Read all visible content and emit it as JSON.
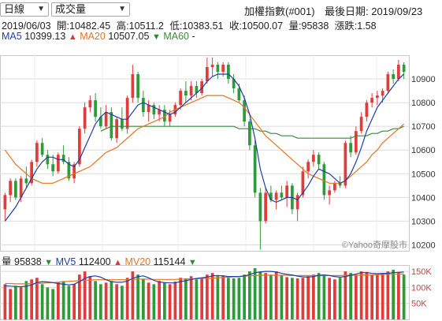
{
  "controls": {
    "period_select": "日線",
    "indicator_select": "成交量"
  },
  "header": {
    "index_name": "加權指數(#001)",
    "last_date": "最後日期: 2019/09/23"
  },
  "ohlc_info": {
    "date": "2019/06/03",
    "open": "開:10482.45",
    "high": "高:10511.2",
    "low": "低:10383.51",
    "close": "收:10500.07",
    "volume": "量:95838",
    "change": "漲跌:1.58"
  },
  "ma_legend": {
    "ma5_label": "MA5",
    "ma5_value": "10399.13",
    "ma20_label": "MA20",
    "ma20_value": "10507.05",
    "ma60_label": "MA60",
    "ma60_value": "-"
  },
  "volume_legend": {
    "vol_label": "量",
    "vol_value": "95838",
    "mv5_label": "MV5",
    "mv5_value": "112400",
    "mv20_label": "MV20",
    "mv20_value": "115144"
  },
  "watermark": "©Yahoo奇摩股市",
  "colors": {
    "up": "#e23b3b",
    "down": "#2f9a3a",
    "ma5": "#1c3fa8",
    "ma20": "#e8731e",
    "ma60": "#3a8a3a",
    "grid": "#dcdcdc"
  },
  "chart_data": [
    {
      "type": "candlestick",
      "price_ticks": [
        "10900",
        "10800",
        "10700",
        "10600",
        "10500",
        "10400",
        "10300",
        "10200"
      ],
      "ylim": [
        10175,
        11000
      ],
      "candles": [
        [
          10350,
          10420,
          10300,
          10410
        ],
        [
          10410,
          10480,
          10380,
          10470
        ],
        [
          10470,
          10480,
          10390,
          10400
        ],
        [
          10400,
          10490,
          10380,
          10480
        ],
        [
          10480,
          10530,
          10440,
          10460
        ],
        [
          10460,
          10560,
          10450,
          10550
        ],
        [
          10550,
          10640,
          10530,
          10630
        ],
        [
          10630,
          10650,
          10570,
          10580
        ],
        [
          10580,
          10600,
          10520,
          10540
        ],
        [
          10540,
          10580,
          10490,
          10510
        ],
        [
          10510,
          10590,
          10500,
          10580
        ],
        [
          10580,
          10620,
          10540,
          10550
        ],
        [
          10550,
          10570,
          10470,
          10480
        ],
        [
          10480,
          10550,
          10460,
          10540
        ],
        [
          10540,
          10700,
          10530,
          10690
        ],
        [
          10690,
          10800,
          10670,
          10780
        ],
        [
          10780,
          10830,
          10760,
          10810
        ],
        [
          10810,
          10840,
          10720,
          10740
        ],
        [
          10740,
          10780,
          10690,
          10700
        ],
        [
          10700,
          10790,
          10690,
          10760
        ],
        [
          10760,
          10780,
          10640,
          10650
        ],
        [
          10650,
          10740,
          10630,
          10730
        ],
        [
          10730,
          10780,
          10680,
          10690
        ],
        [
          10690,
          10830,
          10670,
          10820
        ],
        [
          10820,
          10960,
          10800,
          10920
        ],
        [
          10920,
          10930,
          10800,
          10820
        ],
        [
          10820,
          10850,
          10740,
          10760
        ],
        [
          10760,
          10810,
          10720,
          10790
        ],
        [
          10790,
          10800,
          10730,
          10750
        ],
        [
          10750,
          10790,
          10720,
          10770
        ],
        [
          10770,
          10790,
          10700,
          10720
        ],
        [
          10720,
          10770,
          10700,
          10750
        ],
        [
          10750,
          10800,
          10740,
          10790
        ],
        [
          10790,
          10860,
          10770,
          10850
        ],
        [
          10850,
          10890,
          10800,
          10830
        ],
        [
          10830,
          10890,
          10810,
          10870
        ],
        [
          10870,
          10890,
          10820,
          10840
        ],
        [
          10840,
          10900,
          10830,
          10890
        ],
        [
          10890,
          10990,
          10880,
          10950
        ],
        [
          10950,
          10990,
          10910,
          10960
        ],
        [
          10960,
          10970,
          10900,
          10930
        ],
        [
          10930,
          10970,
          10910,
          10960
        ],
        [
          10960,
          10970,
          10880,
          10900
        ],
        [
          10900,
          10920,
          10840,
          10860
        ],
        [
          10860,
          10880,
          10800,
          10810
        ],
        [
          10810,
          10830,
          10700,
          10720
        ],
        [
          10720,
          10730,
          10600,
          10620
        ],
        [
          10620,
          10640,
          10400,
          10420
        ],
        [
          10420,
          10440,
          10180,
          10300
        ],
        [
          10300,
          10440,
          10290,
          10420
        ],
        [
          10420,
          10450,
          10380,
          10390
        ],
        [
          10390,
          10430,
          10350,
          10420
        ],
        [
          10420,
          10450,
          10390,
          10400
        ],
        [
          10400,
          10470,
          10360,
          10450
        ],
        [
          10450,
          10460,
          10330,
          10350
        ],
        [
          10350,
          10420,
          10300,
          10410
        ],
        [
          10410,
          10530,
          10400,
          10510
        ],
        [
          10510,
          10560,
          10480,
          10550
        ],
        [
          10550,
          10600,
          10530,
          10580
        ],
        [
          10580,
          10590,
          10520,
          10540
        ],
        [
          10540,
          10550,
          10390,
          10410
        ],
        [
          10410,
          10450,
          10370,
          10430
        ],
        [
          10430,
          10470,
          10420,
          10460
        ],
        [
          10460,
          10490,
          10440,
          10450
        ],
        [
          10450,
          10640,
          10440,
          10630
        ],
        [
          10630,
          10660,
          10570,
          10590
        ],
        [
          10590,
          10700,
          10580,
          10680
        ],
        [
          10680,
          10760,
          10670,
          10740
        ],
        [
          10740,
          10810,
          10720,
          10800
        ],
        [
          10800,
          10840,
          10780,
          10820
        ],
        [
          10820,
          10850,
          10790,
          10830
        ],
        [
          10830,
          10860,
          10800,
          10850
        ],
        [
          10850,
          10930,
          10840,
          10920
        ],
        [
          10920,
          10940,
          10880,
          10900
        ],
        [
          10900,
          10980,
          10890,
          10960
        ],
        [
          10960,
          10970,
          10900,
          10930
        ]
      ],
      "ma5": [
        10300,
        10330,
        10360,
        10400,
        10440,
        10480,
        10520,
        10550,
        10570,
        10570,
        10560,
        10560,
        10540,
        10530,
        10560,
        10610,
        10660,
        10710,
        10740,
        10760,
        10750,
        10740,
        10730,
        10730,
        10760,
        10790,
        10800,
        10790,
        10780,
        10770,
        10760,
        10750,
        10760,
        10780,
        10800,
        10820,
        10840,
        10860,
        10890,
        10910,
        10920,
        10920,
        10920,
        10900,
        10870,
        10820,
        10750,
        10650,
        10520,
        10440,
        10390,
        10380,
        10390,
        10400,
        10400,
        10390,
        10420,
        10450,
        10490,
        10520,
        10510,
        10500,
        10480,
        10460,
        10470,
        10500,
        10550,
        10610,
        10680,
        10730,
        10780,
        10810,
        10840,
        10870,
        10900,
        10920
      ],
      "ma20": [
        10600,
        10570,
        10540,
        10520,
        10500,
        10480,
        10470,
        10460,
        10460,
        10460,
        10470,
        10480,
        10490,
        10500,
        10510,
        10520,
        10530,
        10550,
        10570,
        10590,
        10600,
        10610,
        10630,
        10650,
        10670,
        10690,
        10700,
        10710,
        10720,
        10730,
        10740,
        10760,
        10770,
        10780,
        10790,
        10800,
        10810,
        10820,
        10830,
        10830,
        10830,
        10830,
        10820,
        10810,
        10800,
        10780,
        10750,
        10720,
        10690,
        10660,
        10640,
        10620,
        10600,
        10580,
        10560,
        10540,
        10520,
        10500,
        10490,
        10480,
        10470,
        10460,
        10460,
        10460,
        10470,
        10490,
        10510,
        10530,
        10550,
        10580,
        10600,
        10630,
        10650,
        10670,
        10690,
        10710
      ],
      "ma60": [
        null,
        null,
        null,
        null,
        null,
        null,
        null,
        null,
        null,
        null,
        null,
        null,
        null,
        null,
        null,
        null,
        null,
        null,
        10680,
        10690,
        10700,
        10700,
        10700,
        10700,
        10700,
        10700,
        10700,
        10700,
        10700,
        10700,
        10700,
        10700,
        10700,
        10700,
        10700,
        10700,
        10700,
        10700,
        10700,
        10700,
        10700,
        10700,
        10700,
        10700,
        10690,
        10690,
        10690,
        10690,
        10680,
        10680,
        10670,
        10670,
        10660,
        10660,
        10660,
        10650,
        10650,
        10650,
        10650,
        10650,
        10650,
        10650,
        10650,
        10650,
        10650,
        10650,
        10660,
        10660,
        10660,
        10670,
        10670,
        10680,
        10680,
        10690,
        10690,
        10700
      ]
    },
    {
      "type": "bar",
      "volume_ticks": [
        "150K",
        "100K",
        "50K"
      ],
      "ylim": [
        0,
        170
      ],
      "volumes": [
        110,
        95,
        105,
        100,
        120,
        125,
        130,
        110,
        100,
        95,
        115,
        120,
        105,
        110,
        140,
        150,
        135,
        120,
        110,
        115,
        120,
        110,
        105,
        130,
        150,
        140,
        125,
        115,
        110,
        120,
        115,
        110,
        118,
        130,
        128,
        135,
        125,
        130,
        140,
        145,
        135,
        138,
        130,
        128,
        130,
        140,
        150,
        160,
        150,
        145,
        140,
        150,
        138,
        132,
        130,
        128,
        130,
        135,
        140,
        145,
        140,
        130,
        125,
        130,
        150,
        145,
        140,
        150,
        148,
        138,
        140,
        145,
        150,
        155,
        148,
        140
      ],
      "mv5": [
        105,
        104,
        103,
        102,
        104,
        108,
        115,
        118,
        117,
        115,
        112,
        110,
        108,
        110,
        118,
        128,
        134,
        136,
        132,
        124,
        118,
        116,
        116,
        120,
        128,
        134,
        136,
        130,
        122,
        117,
        115,
        114,
        114,
        118,
        121,
        125,
        128,
        130,
        132,
        136,
        137,
        136,
        134,
        134,
        134,
        136,
        140,
        146,
        148,
        150,
        150,
        148,
        144,
        141,
        139,
        135,
        133,
        132,
        134,
        138,
        139,
        137,
        134,
        132,
        134,
        138,
        142,
        146,
        146,
        144,
        143,
        144,
        144,
        146,
        147,
        148
      ],
      "mv20": [
        112,
        112,
        111,
        111,
        111,
        112,
        112,
        113,
        114,
        115,
        116,
        118,
        119,
        120,
        121,
        122,
        123,
        124,
        124,
        124,
        124,
        124,
        124,
        124,
        125,
        126,
        126,
        126,
        125,
        125,
        125,
        125,
        125,
        126,
        126,
        127,
        127,
        128,
        128,
        129,
        130,
        131,
        132,
        133,
        134,
        135,
        136,
        137,
        138,
        138,
        138,
        138,
        138,
        138,
        137,
        137,
        137,
        137,
        137,
        137,
        137,
        137,
        137,
        137,
        138,
        138,
        138,
        139,
        139,
        139,
        140,
        140,
        141,
        141,
        142,
        142
      ]
    }
  ]
}
